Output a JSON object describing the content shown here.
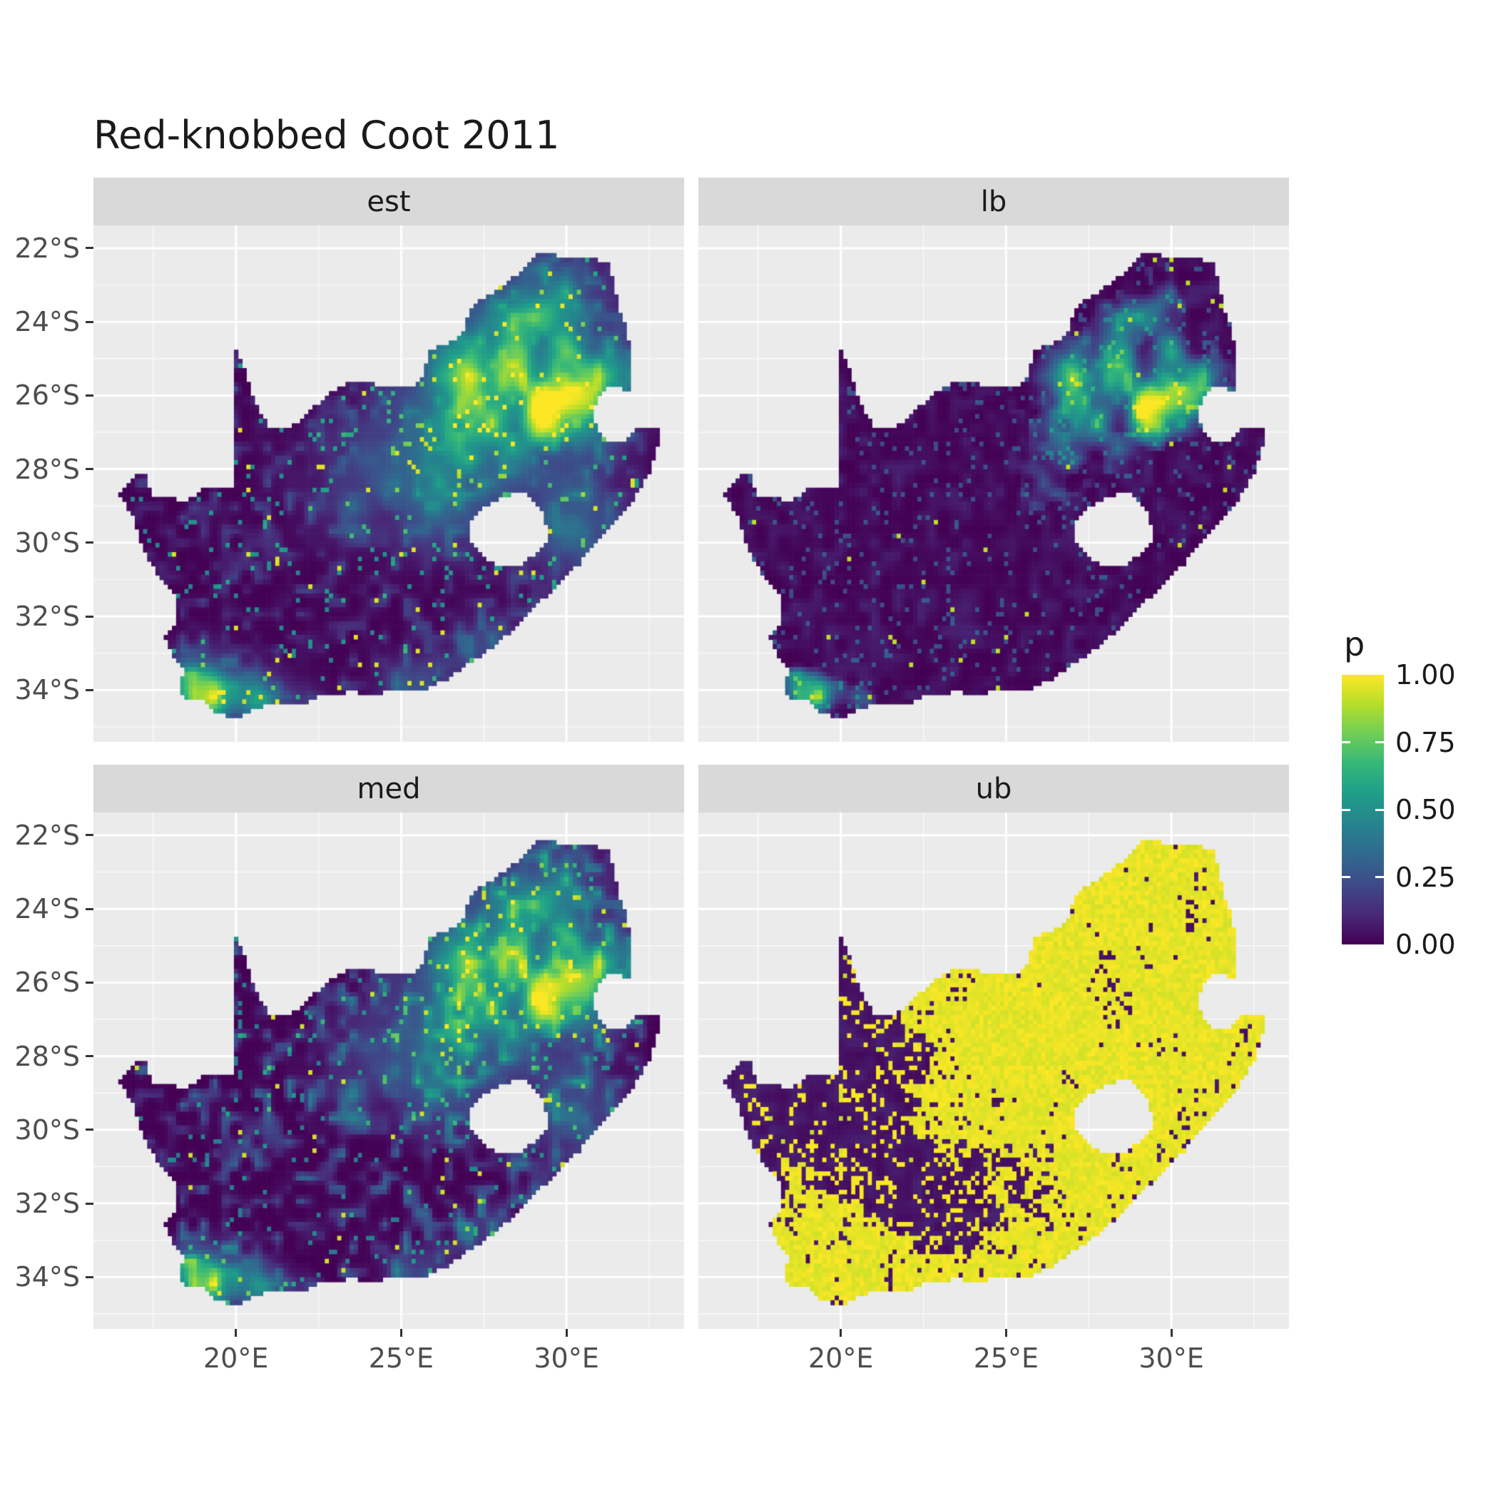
{
  "title": "Red-knobbed Coot 2011",
  "chart_data": {
    "type": "heatmap",
    "title": "Red-knobbed Coot 2011",
    "region": "South Africa",
    "facets": [
      {
        "label": "est"
      },
      {
        "label": "lb"
      },
      {
        "label": "med"
      },
      {
        "label": "ub"
      }
    ],
    "x_ticks": [
      {
        "value": 20,
        "label": "20°E"
      },
      {
        "value": 25,
        "label": "25°E"
      },
      {
        "value": 30,
        "label": "30°E"
      }
    ],
    "y_ticks": [
      {
        "value": -22,
        "label": "22°S"
      },
      {
        "value": -24,
        "label": "24°S"
      },
      {
        "value": -26,
        "label": "26°S"
      },
      {
        "value": -28,
        "label": "28°S"
      },
      {
        "value": -30,
        "label": "30°S"
      },
      {
        "value": -32,
        "label": "32°S"
      },
      {
        "value": -34,
        "label": "34°S"
      }
    ],
    "x_minor": [
      17.5,
      22.5,
      27.5,
      32.5
    ],
    "y_minor": [
      -23,
      -25,
      -27,
      -29,
      -31,
      -33,
      -35
    ],
    "x_range": [
      15.69,
      33.56
    ],
    "y_range": [
      -35.41,
      -21.38
    ],
    "legend": {
      "title": "p",
      "ticks": [
        {
          "value": 1.0,
          "label": "1.00"
        },
        {
          "value": 0.75,
          "label": "0.75"
        },
        {
          "value": 0.5,
          "label": "0.50"
        },
        {
          "value": 0.25,
          "label": "0.25"
        },
        {
          "value": 0.0,
          "label": "0.00"
        }
      ]
    },
    "colors": {
      "panel_bg": "#EBEBEB",
      "strip_bg": "#D9D9D9",
      "grid_major": "#FFFFFF",
      "grid_minor": "#FFFFFF",
      "axis_text": "#4D4D4D",
      "tick_mark": "#333333",
      "text": "#1A1A1A",
      "background": "#FFFFFF"
    },
    "colormap": {
      "name": "viridis",
      "stops": [
        [
          0.0,
          "#440154"
        ],
        [
          0.11,
          "#482878"
        ],
        [
          0.22,
          "#3E4A89"
        ],
        [
          0.33,
          "#31688E"
        ],
        [
          0.44,
          "#26828E"
        ],
        [
          0.56,
          "#1F9E89"
        ],
        [
          0.67,
          "#35B779"
        ],
        [
          0.78,
          "#6ECE58"
        ],
        [
          0.89,
          "#B5DE2B"
        ],
        [
          1.0,
          "#FDE725"
        ]
      ]
    },
    "map": {
      "outline": [
        [
          16.45,
          -28.63
        ],
        [
          16.8,
          -28.3
        ],
        [
          17.1,
          -28.1
        ],
        [
          17.35,
          -28.25
        ],
        [
          17.4,
          -28.7
        ],
        [
          17.95,
          -28.75
        ],
        [
          18.5,
          -28.9
        ],
        [
          19.0,
          -28.5
        ],
        [
          19.55,
          -28.53
        ],
        [
          19.98,
          -28.43
        ],
        [
          19.98,
          -24.77
        ],
        [
          20.25,
          -25.2
        ],
        [
          20.45,
          -25.9
        ],
        [
          20.75,
          -26.5
        ],
        [
          21.0,
          -26.87
        ],
        [
          21.7,
          -26.86
        ],
        [
          22.25,
          -26.38
        ],
        [
          22.85,
          -25.95
        ],
        [
          23.45,
          -25.58
        ],
        [
          24.0,
          -25.65
        ],
        [
          24.75,
          -25.78
        ],
        [
          25.35,
          -25.72
        ],
        [
          25.65,
          -25.47
        ],
        [
          25.9,
          -24.72
        ],
        [
          26.45,
          -24.6
        ],
        [
          26.85,
          -24.27
        ],
        [
          27.15,
          -23.58
        ],
        [
          27.75,
          -23.2
        ],
        [
          28.3,
          -22.88
        ],
        [
          29.05,
          -22.2
        ],
        [
          29.45,
          -22.14
        ],
        [
          30.1,
          -22.3
        ],
        [
          30.85,
          -22.3
        ],
        [
          31.3,
          -22.42
        ],
        [
          31.55,
          -23.5
        ],
        [
          31.85,
          -24.3
        ],
        [
          31.95,
          -25.1
        ],
        [
          31.98,
          -25.95
        ],
        [
          31.4,
          -25.72
        ],
        [
          30.97,
          -26.0
        ],
        [
          30.78,
          -26.42
        ],
        [
          30.9,
          -26.82
        ],
        [
          31.15,
          -27.2
        ],
        [
          31.6,
          -27.32
        ],
        [
          31.96,
          -27.03
        ],
        [
          32.07,
          -26.86
        ],
        [
          32.55,
          -26.86
        ],
        [
          32.89,
          -26.85
        ],
        [
          32.6,
          -27.9
        ],
        [
          32.2,
          -28.6
        ],
        [
          31.7,
          -29.2
        ],
        [
          31.05,
          -29.85
        ],
        [
          30.4,
          -30.55
        ],
        [
          29.85,
          -31.05
        ],
        [
          29.2,
          -31.6
        ],
        [
          28.55,
          -32.2
        ],
        [
          27.85,
          -32.8
        ],
        [
          27.1,
          -33.25
        ],
        [
          26.4,
          -33.7
        ],
        [
          25.7,
          -33.98
        ],
        [
          25.0,
          -34.0
        ],
        [
          24.2,
          -34.1
        ],
        [
          23.4,
          -34.05
        ],
        [
          22.6,
          -34.15
        ],
        [
          21.9,
          -34.4
        ],
        [
          21.0,
          -34.4
        ],
        [
          20.25,
          -34.65
        ],
        [
          19.95,
          -34.8
        ],
        [
          19.4,
          -34.6
        ],
        [
          18.85,
          -34.2
        ],
        [
          18.45,
          -34.3
        ],
        [
          18.3,
          -33.95
        ],
        [
          18.45,
          -33.4
        ],
        [
          18.1,
          -33.05
        ],
        [
          17.85,
          -32.55
        ],
        [
          18.25,
          -32.1
        ],
        [
          18.2,
          -31.5
        ],
        [
          17.65,
          -30.9
        ],
        [
          17.25,
          -30.3
        ],
        [
          16.9,
          -29.3
        ]
      ],
      "holes": [
        [
          [
            27.0,
            -29.6
          ],
          [
            27.35,
            -29.1
          ],
          [
            27.75,
            -28.9
          ],
          [
            28.25,
            -28.7
          ],
          [
            28.7,
            -28.6
          ],
          [
            29.1,
            -28.9
          ],
          [
            29.35,
            -29.3
          ],
          [
            29.45,
            -29.85
          ],
          [
            29.15,
            -30.25
          ],
          [
            28.6,
            -30.6
          ],
          [
            28.05,
            -30.65
          ],
          [
            27.5,
            -30.4
          ],
          [
            27.1,
            -30.0
          ]
        ]
      ]
    },
    "pattern": {
      "cell_size_deg": 0.125,
      "hotspots": [
        [
          27.9,
          -25.8,
          1.7,
          1.4,
          1.05
        ],
        [
          29.6,
          -23.4,
          1.1,
          0.8,
          0.5
        ],
        [
          31.0,
          -25.4,
          0.9,
          0.7,
          0.5
        ],
        [
          18.9,
          -33.95,
          0.8,
          0.6,
          1.0
        ],
        [
          20.6,
          -34.3,
          1.0,
          0.45,
          0.55
        ],
        [
          30.5,
          -29.7,
          1.0,
          0.9,
          0.5
        ],
        [
          26.3,
          -28.9,
          1.1,
          0.9,
          0.4
        ],
        [
          27.9,
          -32.9,
          0.8,
          0.6,
          0.4
        ],
        [
          25.6,
          -33.9,
          0.7,
          0.5,
          0.45
        ],
        [
          24.0,
          -28.2,
          1.5,
          1.2,
          0.22
        ],
        [
          30.0,
          -26.5,
          1.2,
          1.0,
          0.5
        ]
      ],
      "ub_extra_hotspots": [
        [
          18.5,
          -32.6,
          1.2,
          1.6,
          0.6
        ],
        [
          23.3,
          -34.0,
          2.4,
          0.8,
          0.6
        ],
        [
          30.8,
          -29.8,
          1.6,
          1.6,
          0.8
        ],
        [
          31.5,
          -27.5,
          1.2,
          1.6,
          0.8
        ],
        [
          28.7,
          -31.4,
          1.2,
          1.0,
          0.5
        ]
      ]
    }
  }
}
